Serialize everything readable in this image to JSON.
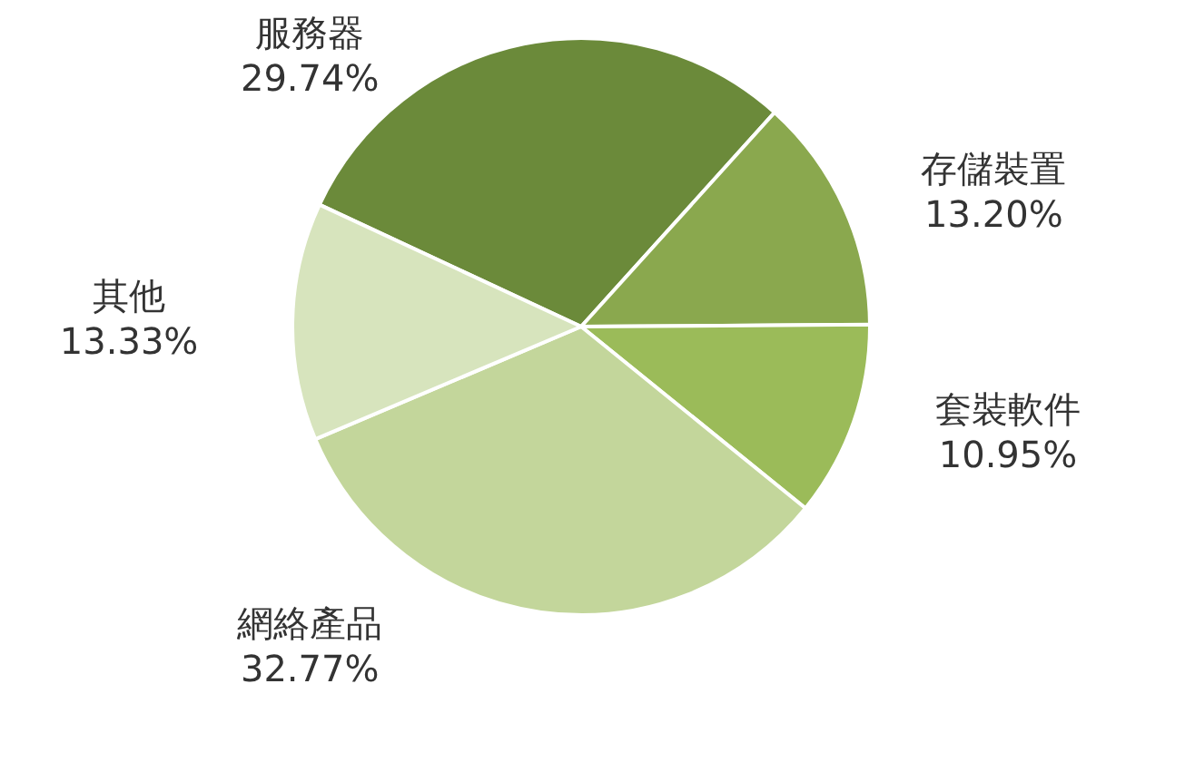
{
  "chart_data": {
    "type": "pie",
    "categories": [
      "服務器",
      "存儲裝置",
      "套裝軟件",
      "網絡產品",
      "其他"
    ],
    "values": [
      29.74,
      13.2,
      10.95,
      32.77,
      13.33
    ],
    "value_labels": [
      "29.74%",
      "13.20%",
      "10.95%",
      "32.77%",
      "13.33%"
    ],
    "colors": [
      "#6b8a3a",
      "#8aa84e",
      "#9bbb59",
      "#c3d69b",
      "#d7e4bd"
    ],
    "legend": false
  }
}
